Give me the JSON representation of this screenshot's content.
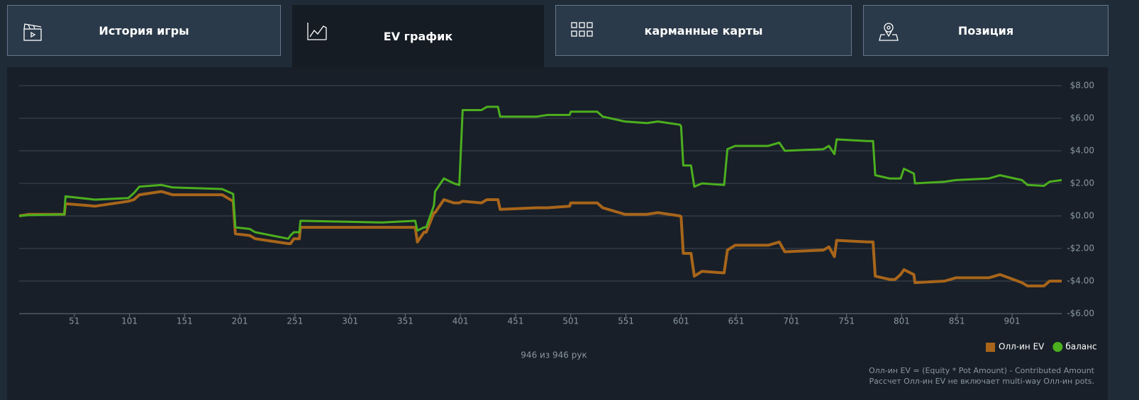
{
  "tabs": [
    {
      "label": "История игры"
    },
    {
      "label": "EV график"
    },
    {
      "label": "карманные карты"
    },
    {
      "label": "Позиция"
    }
  ],
  "chart_data": {
    "type": "line",
    "x": [
      1,
      10,
      42,
      43,
      70,
      100,
      105,
      110,
      130,
      140,
      185,
      195,
      197,
      210,
      215,
      245,
      247,
      250,
      255,
      256,
      330,
      360,
      362,
      368,
      370,
      377,
      378,
      386,
      395,
      400,
      403,
      420,
      425,
      435,
      437,
      470,
      480,
      500,
      501,
      525,
      530,
      550,
      570,
      580,
      600,
      601,
      603,
      610,
      613,
      620,
      640,
      643,
      650,
      680,
      690,
      695,
      730,
      735,
      740,
      742,
      770,
      775,
      777,
      790,
      795,
      800,
      803,
      812,
      813,
      840,
      850,
      880,
      890,
      910,
      915,
      930,
      935,
      946
    ],
    "series": [
      {
        "name": "Олл-ин EV",
        "color": "#a8651a",
        "values": [
          0.0,
          0.1,
          0.1,
          0.75,
          0.6,
          0.9,
          1.0,
          1.3,
          1.5,
          1.3,
          1.3,
          0.9,
          -1.1,
          -1.2,
          -1.4,
          -1.7,
          -1.7,
          -1.4,
          -1.4,
          -0.7,
          -0.7,
          -0.7,
          -1.6,
          -1.0,
          -1.0,
          0.2,
          0.2,
          1.0,
          0.8,
          0.8,
          0.9,
          0.8,
          1.0,
          1.0,
          0.4,
          0.5,
          0.5,
          0.6,
          0.8,
          0.8,
          0.5,
          0.1,
          0.1,
          0.2,
          0.0,
          -0.05,
          -2.3,
          -2.3,
          -3.7,
          -3.4,
          -3.5,
          -2.1,
          -1.8,
          -1.8,
          -1.6,
          -2.2,
          -2.1,
          -1.9,
          -2.5,
          -1.5,
          -1.6,
          -1.6,
          -3.7,
          -3.9,
          -3.9,
          -3.6,
          -3.3,
          -3.6,
          -4.1,
          -4.0,
          -3.8,
          -3.8,
          -3.6,
          -4.1,
          -4.3,
          -4.3,
          -4.0,
          -4.0
        ]
      },
      {
        "name": "баланс",
        "color": "#4caf1e",
        "values": [
          0.0,
          0.05,
          0.1,
          1.2,
          1.0,
          1.1,
          1.4,
          1.8,
          1.9,
          1.75,
          1.65,
          1.35,
          -0.7,
          -0.8,
          -1.0,
          -1.4,
          -1.2,
          -1.0,
          -1.0,
          -0.3,
          -0.4,
          -0.3,
          -0.9,
          -0.7,
          -0.7,
          0.65,
          1.5,
          2.3,
          2.0,
          1.9,
          6.5,
          6.5,
          6.7,
          6.7,
          6.1,
          6.1,
          6.2,
          6.2,
          6.4,
          6.4,
          6.1,
          5.8,
          5.7,
          5.8,
          5.6,
          5.5,
          3.1,
          3.1,
          1.8,
          2.0,
          1.9,
          4.1,
          4.3,
          4.3,
          4.5,
          4.0,
          4.1,
          4.3,
          3.8,
          4.7,
          4.6,
          4.6,
          2.5,
          2.3,
          2.3,
          2.3,
          2.9,
          2.6,
          2.0,
          2.1,
          2.2,
          2.3,
          2.5,
          2.2,
          1.9,
          1.85,
          2.1,
          2.2
        ]
      }
    ],
    "xlim": [
      1,
      946
    ],
    "ylim": [
      -6,
      8
    ],
    "xticks": [
      51,
      101,
      151,
      201,
      251,
      301,
      351,
      401,
      451,
      501,
      551,
      601,
      651,
      701,
      751,
      801,
      851,
      901
    ],
    "yticks": [
      {
        "value": 8,
        "label": "$8.00"
      },
      {
        "value": 6,
        "label": "$6.00"
      },
      {
        "value": 4,
        "label": "$4.00"
      },
      {
        "value": 2,
        "label": "$2.00"
      },
      {
        "value": 0,
        "label": "$0.00"
      },
      {
        "value": -2,
        "label": "-$2.00"
      },
      {
        "value": -4,
        "label": "-$4.00"
      },
      {
        "value": -6,
        "label": "-$6.00"
      }
    ],
    "grid": true,
    "legend": "bottom-right"
  },
  "footer": {
    "count": "946 из 946 рук",
    "notes": [
      "Олл-ин EV = (Equity * Pot Amount) - Contributed Amount",
      "Рассчет Олл-ин EV не включает multi-way Олл-ин pots."
    ]
  }
}
